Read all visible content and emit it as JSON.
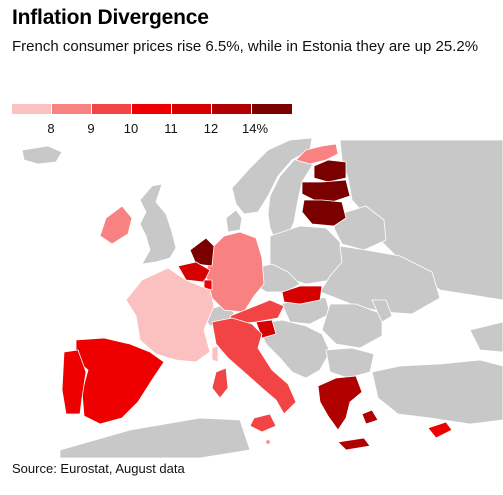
{
  "title": "Inflation Divergence",
  "subtitle": "French consumer prices rise 6.5%, while in Estonia they are up 25.2%",
  "legend": {
    "colors": [
      "#fbc0c0",
      "#f88282",
      "#f24444",
      "#ee0000",
      "#d60000",
      "#b00000",
      "#7a0000"
    ],
    "labels": [
      "8",
      "9",
      "10",
      "11",
      "12",
      "14%"
    ]
  },
  "colors": {
    "no_data": "#c8c8c8",
    "sea": "#ffffff",
    "border": "#ffffff"
  },
  "regions": [
    {
      "name": "France",
      "value": 6.5,
      "bin": 0
    },
    {
      "name": "Estonia",
      "value": 25.2,
      "bin": 6
    },
    {
      "name": "Latvia",
      "bin": 6
    },
    {
      "name": "Lithuania",
      "bin": 6
    },
    {
      "name": "Finland",
      "bin": 1
    },
    {
      "name": "Ireland",
      "bin": 1
    },
    {
      "name": "Germany",
      "bin": 1
    },
    {
      "name": "Netherlands",
      "bin": 6
    },
    {
      "name": "Belgium",
      "bin": 4
    },
    {
      "name": "Luxembourg",
      "bin": 3
    },
    {
      "name": "Spain",
      "bin": 3
    },
    {
      "name": "Portugal",
      "bin": 3
    },
    {
      "name": "Italy",
      "bin": 2
    },
    {
      "name": "Austria",
      "bin": 2
    },
    {
      "name": "Slovenia",
      "bin": 4
    },
    {
      "name": "Slovakia",
      "bin": 4
    },
    {
      "name": "Greece",
      "bin": 5
    },
    {
      "name": "Cyprus",
      "bin": 3
    },
    {
      "name": "Malta",
      "bin": 1
    }
  ],
  "source": "Source: Eurostat, August data"
}
